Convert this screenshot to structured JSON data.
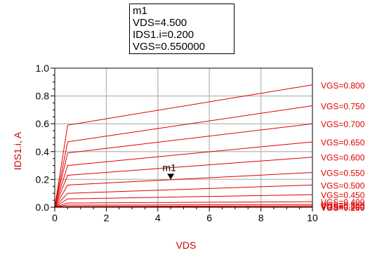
{
  "marker_readout": {
    "name": "m1",
    "line1": "VDS=4.500",
    "line2": "IDS1.i=0.200",
    "line3": "VGS=0.550000"
  },
  "colors": {
    "curve": "#e00000",
    "axis_text": "#cc0000",
    "grid": "#c0c0c0",
    "frame": "#000000"
  },
  "chart_data": {
    "type": "line",
    "title": "",
    "xlabel": "VDS",
    "ylabel": "IDS1.i, A",
    "xlim": [
      0,
      10
    ],
    "ylim": [
      0,
      1.0
    ],
    "x_ticks": [
      "0",
      "2",
      "4",
      "6",
      "8",
      "10"
    ],
    "y_ticks": [
      "0.0",
      "0.2",
      "0.4",
      "0.6",
      "0.8",
      "1.0"
    ],
    "grid": true,
    "x": [
      0,
      0.5,
      10
    ],
    "series": [
      {
        "name": "VGS=0.800",
        "values": [
          0,
          0.59,
          0.88
        ]
      },
      {
        "name": "VGS=0.750",
        "values": [
          0,
          0.47,
          0.73
        ]
      },
      {
        "name": "VGS=0.700",
        "values": [
          0,
          0.39,
          0.6
        ]
      },
      {
        "name": "VGS=0.650",
        "values": [
          0,
          0.3,
          0.47
        ]
      },
      {
        "name": "VGS=0.600",
        "values": [
          0,
          0.23,
          0.36
        ]
      },
      {
        "name": "VGS=0.550",
        "values": [
          0,
          0.16,
          0.25
        ]
      },
      {
        "name": "VGS=0.500",
        "values": [
          0,
          0.1,
          0.16
        ]
      },
      {
        "name": "VGS=0.450",
        "values": [
          0,
          0.06,
          0.09
        ]
      },
      {
        "name": "VGS=0.400",
        "values": [
          0,
          0.03,
          0.04
        ]
      },
      {
        "name": "VGS=0.350",
        "values": [
          0,
          0.015,
          0.02
        ]
      },
      {
        "name": "VGS=0.300",
        "values": [
          0,
          0.005,
          0.01
        ]
      },
      {
        "name": "VGS=0.250",
        "values": [
          0,
          0.002,
          0.003
        ]
      },
      {
        "name": "VGS=0.200",
        "values": [
          0,
          0.0,
          0.0
        ]
      }
    ],
    "marker": {
      "name": "m1",
      "x": 4.5,
      "y": 0.2
    }
  }
}
